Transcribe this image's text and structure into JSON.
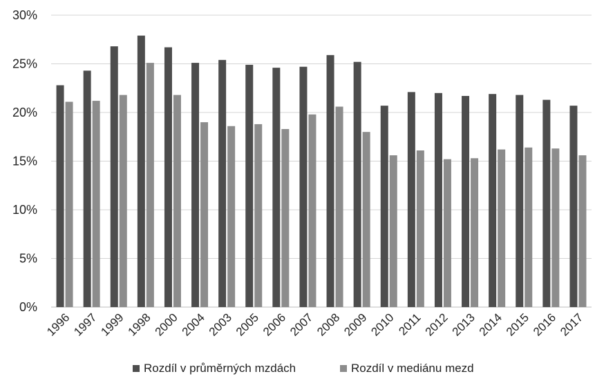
{
  "chart_data": {
    "type": "bar",
    "categories": [
      "1996",
      "1997",
      "1999",
      "1998",
      "2000",
      "2004",
      "2003",
      "2005",
      "2006",
      "2007",
      "2008",
      "2009",
      "2010",
      "2011",
      "2012",
      "2013",
      "2014",
      "2015",
      "2016",
      "2017"
    ],
    "series": [
      {
        "name": "Rozdíl v průměrných mzdách",
        "color": "#4d4d4d",
        "values": [
          22.8,
          24.3,
          26.8,
          27.9,
          26.7,
          25.1,
          25.4,
          24.9,
          24.6,
          24.7,
          25.9,
          25.2,
          20.7,
          22.1,
          22.0,
          21.7,
          21.9,
          21.8,
          21.3,
          20.7
        ]
      },
      {
        "name": "Rozdíl v mediánu mezd",
        "color": "#8c8c8c",
        "values": [
          21.1,
          21.2,
          21.8,
          25.1,
          21.8,
          19.0,
          18.6,
          18.8,
          18.3,
          19.8,
          20.6,
          18.0,
          15.6,
          16.1,
          15.2,
          15.3,
          16.2,
          16.4,
          16.3,
          15.6
        ]
      }
    ],
    "yticks": [
      "0%",
      "5%",
      "10%",
      "15%",
      "20%",
      "25%",
      "30%"
    ],
    "ylim": [
      0,
      30
    ],
    "grid": true,
    "legend_position": "bottom",
    "title": "",
    "xlabel": "",
    "ylabel": ""
  }
}
